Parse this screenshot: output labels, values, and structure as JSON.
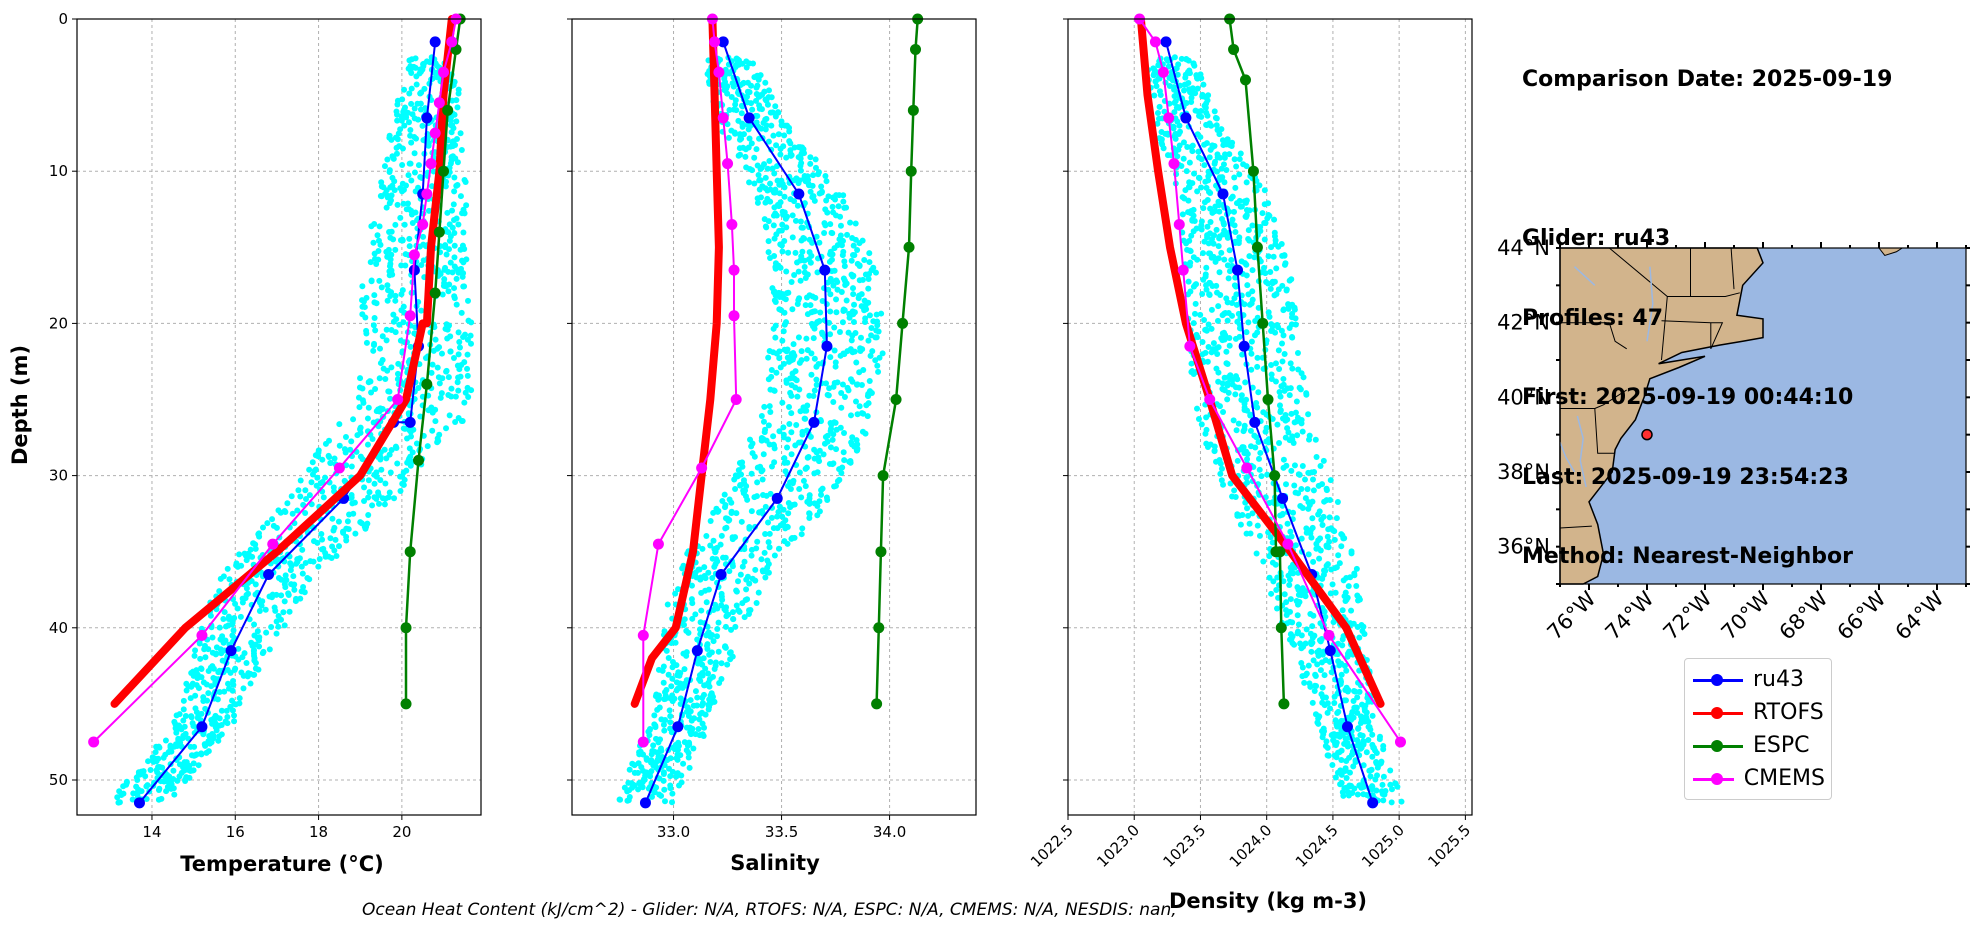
{
  "info": {
    "comparison_date": "Comparison Date: 2025-09-19",
    "glider": "Glider: ru43",
    "profiles": "Profiles: 47",
    "first": "First: 2025-09-19 00:44:10",
    "last": "Last: 2025-09-19 23:54:23",
    "method": "Method: Nearest-Neighbor"
  },
  "footer": "Ocean Heat Content (kJ/cm^2) - Glider: N/A,  RTOFS: N/A,  ESPC: N/A,  CMEMS: N/A,  NESDIS: nan,",
  "colors": {
    "ru43": "#0000ff",
    "RTOFS": "#ff0000",
    "ESPC": "#008000",
    "CMEMS": "#ff00ff",
    "glider_points": "#00ffff",
    "land": "#d2b48c",
    "ocean": "#9bb8e3"
  },
  "legend": [
    {
      "name": "ru43",
      "color": "#0000ff"
    },
    {
      "name": "RTOFS",
      "color": "#ff0000"
    },
    {
      "name": "ESPC",
      "color": "#008000"
    },
    {
      "name": "CMEMS",
      "color": "#ff00ff"
    }
  ],
  "chart_data": [
    {
      "type": "line",
      "xlabel": "Temperature (°C)",
      "ylabel": "Depth (m)",
      "xlim": [
        12.2,
        21.9
      ],
      "ylim": [
        52.3,
        0
      ],
      "xticks": [
        "14",
        "16",
        "18",
        "20"
      ],
      "xtick_values": [
        14,
        16,
        18,
        20
      ],
      "yticks": [
        "0",
        "10",
        "20",
        "30",
        "40",
        "50"
      ],
      "ytick_values": [
        0,
        10,
        20,
        30,
        40,
        50
      ],
      "grid": true,
      "series": [
        {
          "name": "ru43",
          "x": [
            20.8,
            20.6,
            20.5,
            20.3,
            20.4,
            20.2,
            19.8,
            18.6,
            16.8,
            15.9,
            15.2,
            13.7
          ],
          "y": [
            1.5,
            6.5,
            11.5,
            16.5,
            21.5,
            26.5,
            26.5,
            31.5,
            36.5,
            41.5,
            46.5,
            51.5
          ]
        },
        {
          "name": "RTOFS",
          "x": [
            21.2,
            21.0,
            20.9,
            20.7,
            20.6,
            20.5,
            20.1,
            19.0,
            17.0,
            14.8,
            13.1
          ],
          "y": [
            0,
            5,
            10,
            15,
            20,
            20,
            25,
            30,
            35,
            40,
            45
          ]
        },
        {
          "name": "ESPC",
          "x": [
            21.4,
            21.3,
            21.1,
            21.0,
            20.9,
            20.8,
            20.6,
            20.4,
            20.2,
            20.1,
            20.1
          ],
          "y": [
            0,
            2,
            6,
            10,
            14,
            18,
            24,
            29,
            35,
            40,
            45
          ]
        },
        {
          "name": "CMEMS",
          "x": [
            21.3,
            21.2,
            21.0,
            20.9,
            20.8,
            20.7,
            20.6,
            20.5,
            20.3,
            20.2,
            19.9,
            18.5,
            16.9,
            15.2,
            12.6
          ],
          "y": [
            0,
            1.5,
            3.5,
            5.5,
            7.5,
            9.5,
            11.5,
            13.5,
            15.5,
            19.5,
            25,
            29.5,
            34.5,
            40.5,
            47.5
          ]
        }
      ]
    },
    {
      "type": "line",
      "xlabel": "Salinity",
      "ylabel": "",
      "xlim": [
        32.53,
        34.4
      ],
      "ylim": [
        52.3,
        0
      ],
      "xticks": [
        "33.0",
        "33.5",
        "34.0"
      ],
      "xtick_values": [
        33.0,
        33.5,
        34.0
      ],
      "yticks": [],
      "ytick_values": [
        0,
        10,
        20,
        30,
        40,
        50
      ],
      "grid": true,
      "series": [
        {
          "name": "ru43",
          "x": [
            33.23,
            33.35,
            33.58,
            33.7,
            33.71,
            33.65,
            33.48,
            33.22,
            33.11,
            33.02,
            32.87
          ],
          "y": [
            1.5,
            6.5,
            11.5,
            16.5,
            21.5,
            26.5,
            31.5,
            36.5,
            41.5,
            46.5,
            51.5
          ]
        },
        {
          "name": "RTOFS",
          "x": [
            33.18,
            33.19,
            33.2,
            33.21,
            33.2,
            33.17,
            33.13,
            33.09,
            33.01,
            32.9,
            32.82
          ],
          "y": [
            0,
            5,
            10,
            15,
            20,
            25,
            30,
            35,
            40,
            42,
            45
          ]
        },
        {
          "name": "ESPC",
          "x": [
            34.13,
            34.12,
            34.11,
            34.1,
            34.09,
            34.06,
            34.03,
            33.97,
            33.96,
            33.95,
            33.94
          ],
          "y": [
            0,
            2,
            6,
            10,
            15,
            20,
            25,
            30,
            35,
            40,
            45
          ]
        },
        {
          "name": "CMEMS",
          "x": [
            33.18,
            33.19,
            33.21,
            33.23,
            33.25,
            33.27,
            33.28,
            33.28,
            33.29,
            33.13,
            32.93,
            32.86,
            32.86
          ],
          "y": [
            0,
            1.5,
            3.5,
            6.5,
            9.5,
            13.5,
            16.5,
            19.5,
            25,
            29.5,
            34.5,
            40.5,
            47.5
          ]
        }
      ]
    },
    {
      "type": "line",
      "xlabel": "Density (kg m-3)",
      "ylabel": "",
      "xlim": [
        1022.5,
        1025.55
      ],
      "ylim": [
        52.3,
        0
      ],
      "xticks": [
        "1022.5",
        "1023.0",
        "1023.5",
        "1024.0",
        "1024.5",
        "1025.0",
        "1025.5"
      ],
      "xtick_values": [
        1022.5,
        1023.0,
        1023.5,
        1024.0,
        1024.5,
        1025.0,
        1025.5
      ],
      "yticks": [],
      "ytick_values": [
        0,
        10,
        20,
        30,
        40,
        50
      ],
      "grid": true,
      "series": [
        {
          "name": "ru43",
          "x": [
            1023.24,
            1023.39,
            1023.67,
            1023.78,
            1023.83,
            1023.91,
            1024.12,
            1024.34,
            1024.48,
            1024.61,
            1024.8
          ],
          "y": [
            1.5,
            6.5,
            11.5,
            16.5,
            21.5,
            26.5,
            31.5,
            36.5,
            41.5,
            46.5,
            51.5
          ]
        },
        {
          "name": "RTOFS",
          "x": [
            1023.05,
            1023.1,
            1023.18,
            1023.27,
            1023.39,
            1023.57,
            1023.74,
            1024.18,
            1024.6,
            1024.86
          ],
          "y": [
            0,
            5,
            10,
            15,
            20,
            25,
            30,
            35,
            40,
            45
          ]
        },
        {
          "name": "ESPC",
          "x": [
            1023.72,
            1023.75,
            1023.84,
            1023.9,
            1023.93,
            1023.97,
            1024.01,
            1024.06,
            1024.07,
            1024.1,
            1024.11,
            1024.13
          ],
          "y": [
            0,
            2,
            4,
            10,
            15,
            20,
            25,
            30,
            35,
            35,
            40,
            45
          ]
        },
        {
          "name": "CMEMS",
          "x": [
            1023.04,
            1023.16,
            1023.22,
            1023.26,
            1023.3,
            1023.34,
            1023.37,
            1023.42,
            1023.57,
            1023.85,
            1024.16,
            1024.47,
            1025.01
          ],
          "y": [
            0,
            1.5,
            3.5,
            6.5,
            9.5,
            13.5,
            16.5,
            21.5,
            25,
            29.5,
            34.5,
            40.5,
            47.5
          ]
        }
      ]
    }
  ],
  "map": {
    "lat_ticks": [
      "44°N",
      "42°N",
      "40°N",
      "38°N",
      "36°N"
    ],
    "lat_values": [
      44,
      42,
      40,
      38,
      36
    ],
    "lon_ticks": [
      "76°W",
      "74°W",
      "72°W",
      "70°W",
      "68°W",
      "66°W",
      "64°W"
    ],
    "lon_values": [
      -76,
      -74,
      -72,
      -70,
      -68,
      -66,
      -64
    ],
    "lon_range": [
      -77.0,
      -63.0
    ],
    "lat_range": [
      35.0,
      44.0
    ],
    "glider_position": {
      "lon": -74.0,
      "lat": 39.0
    }
  }
}
